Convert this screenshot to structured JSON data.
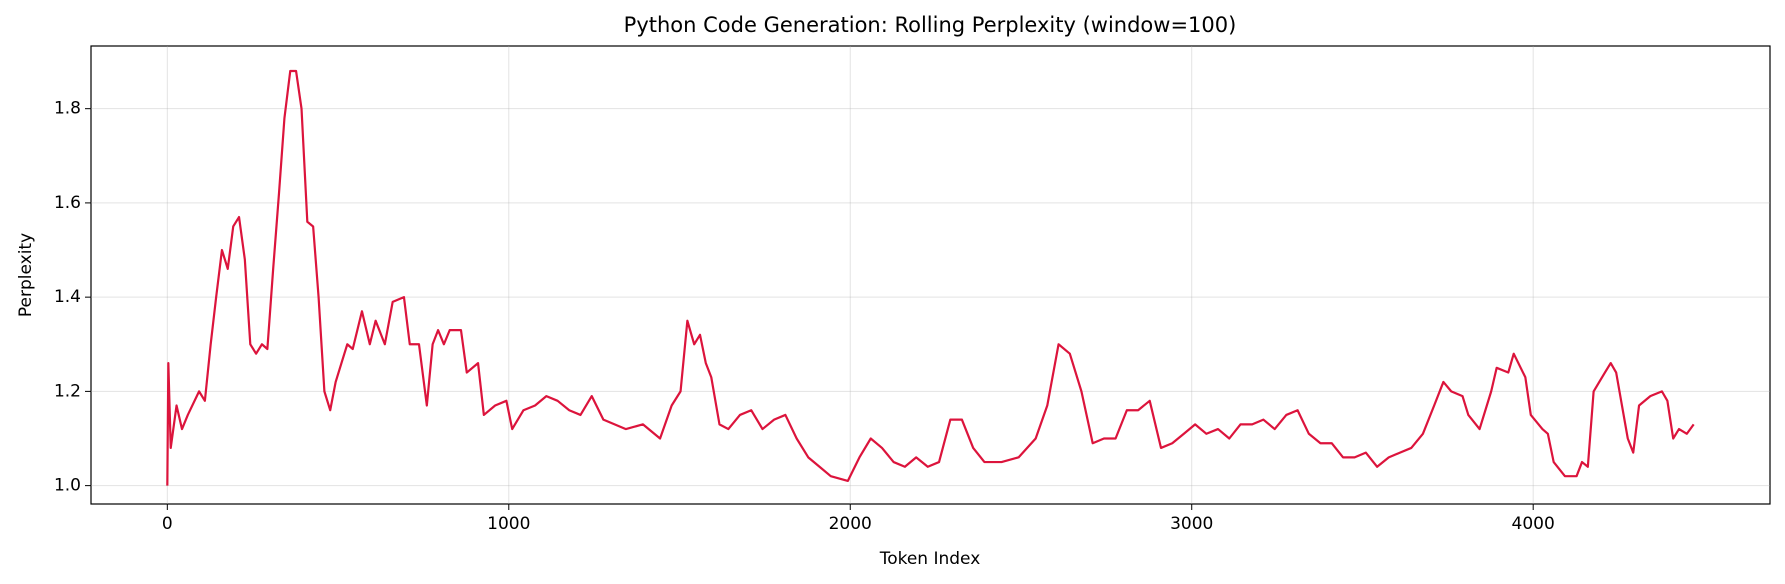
{
  "chart_data": {
    "type": "line",
    "title": "Python Code Generation: Rolling Perplexity (window=100)",
    "xlabel": "Token Index",
    "ylabel": "Perplexity",
    "color": "#dc143c",
    "grid": true,
    "xlim": [
      -223.5,
      4693.5
    ],
    "ylim": [
      0.961,
      1.933
    ],
    "xticks": [
      0,
      1000,
      2000,
      3000,
      4000
    ],
    "yticks": [
      {
        "value": 1.0,
        "label": "1.0"
      },
      1.2,
      1.4,
      1.6,
      1.8
    ],
    "x": [
      0,
      3,
      10,
      27,
      43,
      60,
      93,
      110,
      127,
      143,
      160,
      177,
      193,
      210,
      227,
      243,
      260,
      277,
      293,
      310,
      327,
      343,
      360,
      377,
      393,
      410,
      427,
      443,
      460,
      477,
      493,
      510,
      527,
      543,
      570,
      593,
      610,
      637,
      660,
      693,
      710,
      737,
      760,
      777,
      793,
      810,
      827,
      860,
      877,
      910,
      927,
      960,
      993,
      1010,
      1043,
      1077,
      1110,
      1143,
      1177,
      1210,
      1243,
      1277,
      1310,
      1343,
      1393,
      1443,
      1477,
      1503,
      1523,
      1543,
      1560,
      1577,
      1593,
      1617,
      1643,
      1677,
      1710,
      1743,
      1777,
      1810,
      1843,
      1877,
      1910,
      1943,
      1993,
      2027,
      2060,
      2093,
      2127,
      2160,
      2193,
      2227,
      2260,
      2293,
      2327,
      2360,
      2393,
      2443,
      2493,
      2543,
      2577,
      2610,
      2643,
      2677,
      2710,
      2743,
      2777,
      2810,
      2843,
      2877,
      2910,
      2943,
      2977,
      3010,
      3043,
      3077,
      3110,
      3143,
      3177,
      3210,
      3243,
      3277,
      3310,
      3343,
      3377,
      3410,
      3443,
      3477,
      3510,
      3543,
      3577,
      3610,
      3643,
      3677,
      3710,
      3737,
      3760,
      3793,
      3810,
      3843,
      3877,
      3893,
      3927,
      3943,
      3977,
      3993,
      4027,
      4043,
      4060,
      4093,
      4127,
      4143,
      4160,
      4177,
      4210,
      4227,
      4243,
      4260,
      4277,
      4293,
      4310,
      4343,
      4377,
      4393,
      4410,
      4427,
      4450,
      4470
    ],
    "values": [
      1.0,
      1.26,
      1.08,
      1.17,
      1.12,
      1.15,
      1.2,
      1.18,
      1.3,
      1.4,
      1.5,
      1.46,
      1.55,
      1.57,
      1.48,
      1.3,
      1.28,
      1.3,
      1.29,
      1.46,
      1.62,
      1.78,
      1.88,
      1.88,
      1.8,
      1.56,
      1.55,
      1.4,
      1.2,
      1.16,
      1.22,
      1.26,
      1.3,
      1.29,
      1.37,
      1.3,
      1.35,
      1.3,
      1.39,
      1.4,
      1.3,
      1.3,
      1.17,
      1.3,
      1.33,
      1.3,
      1.33,
      1.33,
      1.24,
      1.26,
      1.15,
      1.17,
      1.18,
      1.12,
      1.16,
      1.17,
      1.19,
      1.18,
      1.16,
      1.15,
      1.19,
      1.14,
      1.13,
      1.12,
      1.13,
      1.1,
      1.17,
      1.2,
      1.35,
      1.3,
      1.32,
      1.26,
      1.23,
      1.13,
      1.12,
      1.15,
      1.16,
      1.12,
      1.14,
      1.15,
      1.1,
      1.06,
      1.04,
      1.02,
      1.01,
      1.06,
      1.1,
      1.08,
      1.05,
      1.04,
      1.06,
      1.04,
      1.05,
      1.14,
      1.14,
      1.08,
      1.05,
      1.05,
      1.06,
      1.1,
      1.17,
      1.3,
      1.28,
      1.2,
      1.09,
      1.1,
      1.1,
      1.16,
      1.16,
      1.18,
      1.08,
      1.09,
      1.11,
      1.13,
      1.11,
      1.12,
      1.1,
      1.13,
      1.13,
      1.14,
      1.12,
      1.15,
      1.16,
      1.11,
      1.09,
      1.09,
      1.06,
      1.06,
      1.07,
      1.04,
      1.06,
      1.07,
      1.08,
      1.11,
      1.17,
      1.22,
      1.2,
      1.19,
      1.15,
      1.12,
      1.2,
      1.25,
      1.24,
      1.28,
      1.23,
      1.15,
      1.12,
      1.11,
      1.05,
      1.02,
      1.02,
      1.05,
      1.04,
      1.2,
      1.24,
      1.26,
      1.24,
      1.17,
      1.1,
      1.07,
      1.17,
      1.19,
      1.2,
      1.18,
      1.1,
      1.12,
      1.11,
      1.13
    ]
  }
}
